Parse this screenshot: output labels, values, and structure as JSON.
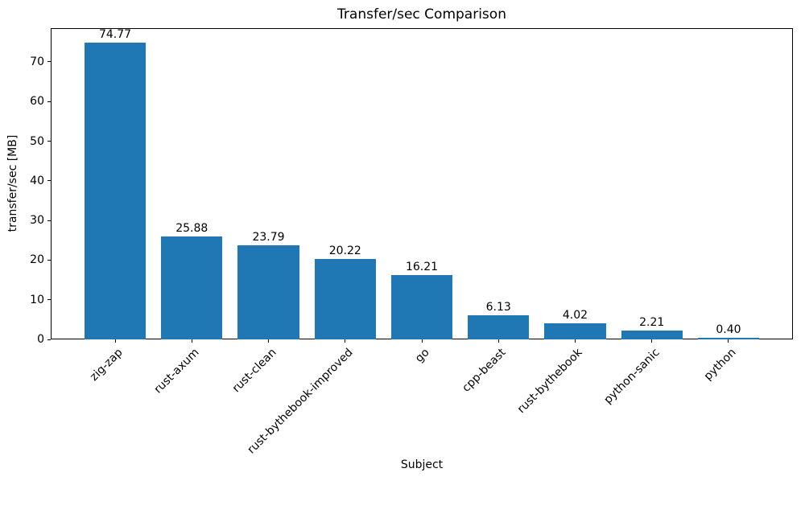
{
  "chart_data": {
    "type": "bar",
    "title": "Transfer/sec Comparison",
    "xlabel": "Subject",
    "ylabel": "transfer/sec [MB]",
    "categories": [
      "zig-zap",
      "rust-axum",
      "rust-clean",
      "rust-bythebook-improved",
      "go",
      "cpp-beast",
      "rust-bythebook",
      "python-sanic",
      "python"
    ],
    "values": [
      74.77,
      25.88,
      23.79,
      20.22,
      16.21,
      6.13,
      4.02,
      2.21,
      0.4
    ],
    "bar_value_labels": [
      "74.77",
      "25.88",
      "23.79",
      "20.22",
      "16.21",
      "6.13",
      "4.02",
      "2.21",
      "0.40"
    ],
    "ytick_labels": [
      "0",
      "10",
      "20",
      "30",
      "40",
      "50",
      "60",
      "70"
    ],
    "yticks": [
      0,
      10,
      20,
      30,
      40,
      50,
      60,
      70
    ],
    "ylim": [
      0,
      78.5
    ],
    "grid": false,
    "legend_position": "none",
    "bar_color": "#1f77b4",
    "axis_color": "#000000",
    "text_color": "#000000",
    "background_color": "#ffffff"
  }
}
